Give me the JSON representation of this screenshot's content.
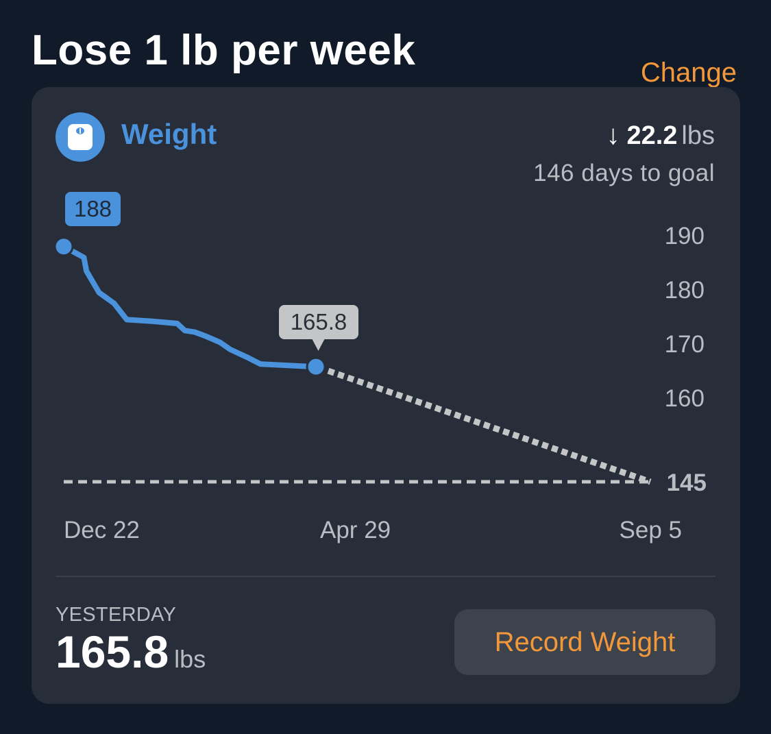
{
  "header": {
    "title": "Lose 1 lb per week",
    "change_label": "Change"
  },
  "card": {
    "metric_icon": "scale-icon",
    "metric_name": "Weight",
    "delta_arrow": "↓",
    "delta_value": "22.2",
    "delta_unit": "lbs",
    "days_to_goal": "146 days to goal",
    "yesterday_label": "YESTERDAY",
    "yesterday_value": "165.8",
    "yesterday_unit": "lbs",
    "record_button": "Record Weight"
  },
  "colors": {
    "background": "#111a29",
    "card": "#282e39",
    "accent_blue": "#4a93dc",
    "accent_orange": "#f2983a",
    "projection_gray": "#c4c5c7",
    "muted_text": "#b9bcc2"
  },
  "chart_data": {
    "type": "line",
    "title": "Weight",
    "xlabel": "",
    "ylabel": "lbs",
    "x_tick_labels": [
      "Dec 22",
      "Apr 29",
      "Sep 5"
    ],
    "y_tick_labels": [
      "190",
      "180",
      "170",
      "160",
      "145"
    ],
    "ylim": [
      145,
      190
    ],
    "goal": 145,
    "series": [
      {
        "name": "Recorded weight",
        "style": "solid",
        "color": "#4a93dc",
        "points": [
          {
            "t": 0.0,
            "y": 188.0
          },
          {
            "t": 0.04,
            "y": 187.0
          },
          {
            "t": 0.08,
            "y": 186.0
          },
          {
            "t": 0.09,
            "y": 183.5
          },
          {
            "t": 0.14,
            "y": 179.5
          },
          {
            "t": 0.2,
            "y": 177.5
          },
          {
            "t": 0.25,
            "y": 174.5
          },
          {
            "t": 0.35,
            "y": 174.2
          },
          {
            "t": 0.45,
            "y": 173.8
          },
          {
            "t": 0.48,
            "y": 172.5
          },
          {
            "t": 0.52,
            "y": 172.2
          },
          {
            "t": 0.56,
            "y": 171.5
          },
          {
            "t": 0.62,
            "y": 170.3
          },
          {
            "t": 0.66,
            "y": 169.0
          },
          {
            "t": 0.73,
            "y": 167.5
          },
          {
            "t": 0.78,
            "y": 166.3
          },
          {
            "t": 1.0,
            "y": 165.8
          }
        ]
      },
      {
        "name": "Projection",
        "style": "dotted",
        "color": "#c4c5c7",
        "points": [
          {
            "x": "Apr 29",
            "y": 165.8
          },
          {
            "x": "Sep 5",
            "y": 145
          }
        ]
      },
      {
        "name": "Goal",
        "style": "dashed",
        "color": "#c4c5c7",
        "y": 145
      }
    ],
    "annotations": [
      {
        "label": "188",
        "at": "Dec 22",
        "style": "blue-badge"
      },
      {
        "label": "165.8",
        "at": "Apr 29",
        "style": "gray-callout"
      }
    ],
    "grid": false,
    "legend": "none"
  }
}
